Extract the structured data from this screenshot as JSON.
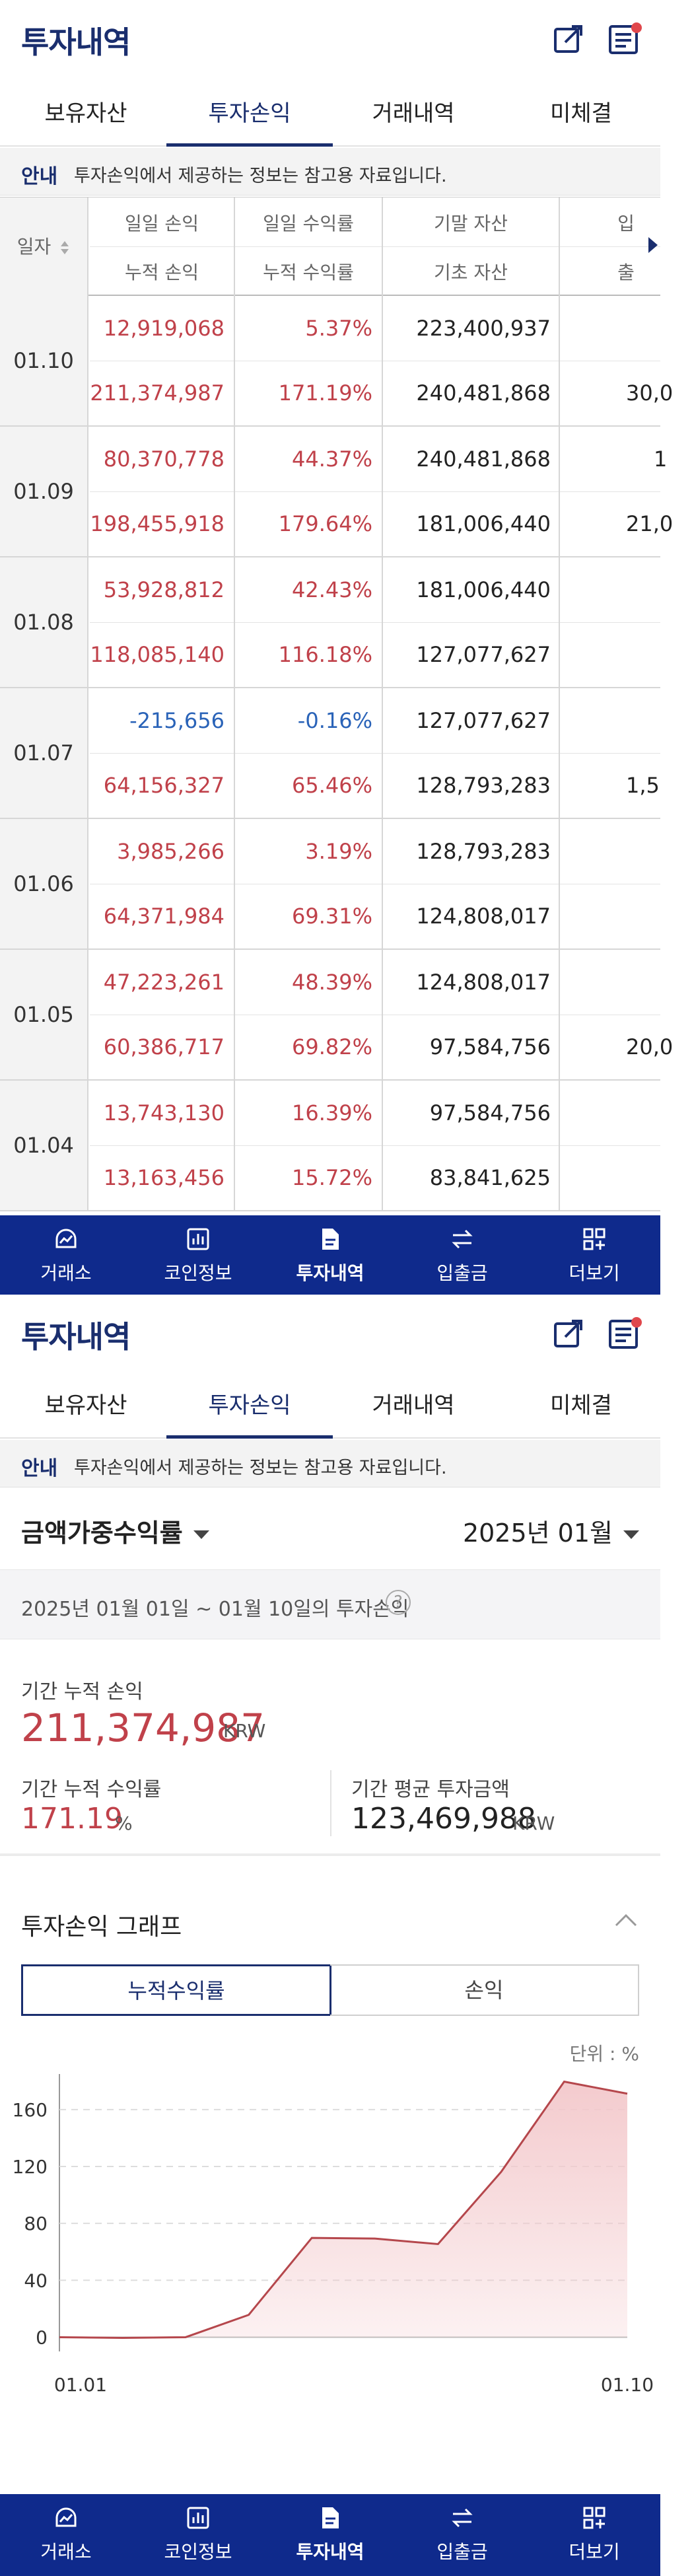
{
  "header": {
    "title": "투자내역",
    "share_icon": "share-icon",
    "memo_icon": "memo-icon"
  },
  "tabs": [
    "보유자산",
    "투자손익",
    "거래내역",
    "미체결"
  ],
  "active_tab": "투자손익",
  "notice": {
    "tag": "안내",
    "text": "투자손익에서 제공하는 정보는 참고용 자료입니다."
  },
  "table": {
    "date_header": "일자",
    "headers_top": [
      "일일 손익",
      "일일 수익률",
      "기말 자산",
      "입"
    ],
    "headers_bottom": [
      "누적 손익",
      "누적 수익률",
      "기초 자산",
      "출"
    ],
    "rows": [
      {
        "date": "01.10",
        "daily_pl": "12,919,068",
        "daily_rate": "5.37%",
        "end_asset": "223,400,937",
        "extra_top": "",
        "cum_pl": "211,374,987",
        "cum_rate": "171.19%",
        "begin_asset": "240,481,868",
        "extra_bottom": "30,0",
        "daily_sign": "pos"
      },
      {
        "date": "01.09",
        "daily_pl": "80,370,778",
        "daily_rate": "44.37%",
        "end_asset": "240,481,868",
        "extra_top": "1",
        "cum_pl": "198,455,918",
        "cum_rate": "179.64%",
        "begin_asset": "181,006,440",
        "extra_bottom": "21,0",
        "daily_sign": "pos"
      },
      {
        "date": "01.08",
        "daily_pl": "53,928,812",
        "daily_rate": "42.43%",
        "end_asset": "181,006,440",
        "extra_top": "",
        "cum_pl": "118,085,140",
        "cum_rate": "116.18%",
        "begin_asset": "127,077,627",
        "extra_bottom": "",
        "daily_sign": "pos"
      },
      {
        "date": "01.07",
        "daily_pl": "-215,656",
        "daily_rate": "-0.16%",
        "end_asset": "127,077,627",
        "extra_top": "",
        "cum_pl": "64,156,327",
        "cum_rate": "65.46%",
        "begin_asset": "128,793,283",
        "extra_bottom": "1,5",
        "daily_sign": "neg"
      },
      {
        "date": "01.06",
        "daily_pl": "3,985,266",
        "daily_rate": "3.19%",
        "end_asset": "128,793,283",
        "extra_top": "",
        "cum_pl": "64,371,984",
        "cum_rate": "69.31%",
        "begin_asset": "124,808,017",
        "extra_bottom": "",
        "daily_sign": "pos"
      },
      {
        "date": "01.05",
        "daily_pl": "47,223,261",
        "daily_rate": "48.39%",
        "end_asset": "124,808,017",
        "extra_top": "",
        "cum_pl": "60,386,717",
        "cum_rate": "69.82%",
        "begin_asset": "97,584,756",
        "extra_bottom": "20,0",
        "daily_sign": "pos"
      },
      {
        "date": "01.04",
        "daily_pl": "13,743,130",
        "daily_rate": "16.39%",
        "end_asset": "97,584,756",
        "extra_top": "",
        "cum_pl": "13,163,456",
        "cum_rate": "15.72%",
        "begin_asset": "83,841,625",
        "extra_bottom": "",
        "daily_sign": "pos"
      }
    ]
  },
  "bottom_nav": [
    {
      "label": "거래소",
      "icon": "exchange-chart-icon"
    },
    {
      "label": "코인정보",
      "icon": "coin-info-icon"
    },
    {
      "label": "투자내역",
      "icon": "document-icon"
    },
    {
      "label": "입출금",
      "icon": "transfer-icon"
    },
    {
      "label": "더보기",
      "icon": "more-grid-icon"
    }
  ],
  "active_nav": "투자내역",
  "summary": {
    "metric_selector": "금액가중수익률",
    "month_selector": "2025년 01월",
    "period_text": "2025년 01월 01일 ~ 01월 10일의 투자손익",
    "cum_pl_label": "기간 누적 손익",
    "cum_pl_value": "211,374,987",
    "cum_pl_unit": "KRW",
    "cum_rate_label": "기간 누적 수익률",
    "cum_rate_value": "171.19",
    "cum_rate_unit": "%",
    "avg_invest_label": "기간 평균 투자금액",
    "avg_invest_value": "123,469,988",
    "avg_invest_unit": "KRW"
  },
  "graph_section": {
    "title": "투자손익 그래프",
    "segments": [
      "누적수익률",
      "손익"
    ],
    "active_segment": "누적수익률",
    "unit_note": "단위 : %"
  },
  "colors": {
    "brand_navy": "#1a2e6e",
    "nav_bg": "#0f2a8c",
    "positive": "#c0414a",
    "negative": "#2a63b8",
    "chart_line": "#b5474c",
    "chart_fill": "#f3c8cb"
  },
  "chart_data": {
    "type": "area",
    "x": [
      "01.01",
      "01.02",
      "01.03",
      "01.04",
      "01.05",
      "01.06",
      "01.07",
      "01.08",
      "01.09",
      "01.10"
    ],
    "x_tick_labels": [
      "01.01",
      "01.10"
    ],
    "series": [
      {
        "values": [
          0,
          -0.5,
          0,
          15.72,
          69.82,
          69.31,
          65.46,
          116.18,
          179.64,
          171.19
        ]
      }
    ],
    "yticks": [
      0,
      40,
      80,
      120,
      160
    ],
    "ylim": [
      -10,
      185
    ],
    "grid": true,
    "xlabel": "",
    "ylabel": ""
  }
}
